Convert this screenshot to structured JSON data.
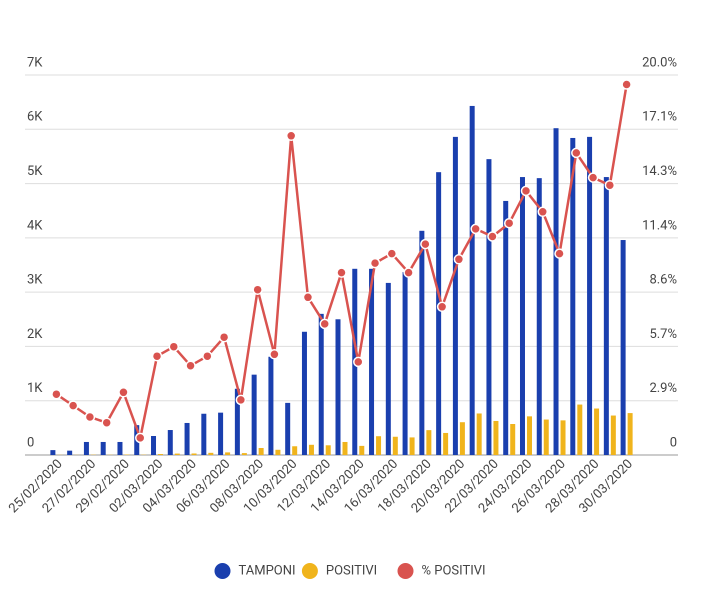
{
  "chart_data": {
    "type": "bar",
    "categories": [
      "25/02/2020",
      null,
      "27/02/2020",
      null,
      "29/02/2020",
      null,
      "02/03/2020",
      null,
      "04/03/2020",
      null,
      "06/03/2020",
      null,
      "08/03/2020",
      null,
      "10/03/2020",
      null,
      "12/03/2020",
      null,
      "14/03/2020",
      null,
      "16/03/2020",
      null,
      "18/03/2020",
      null,
      "20/03/2020",
      null,
      "22/03/2020",
      null,
      "24/03/2020",
      null,
      "26/03/2020",
      null,
      "28/03/2020",
      null,
      "30/03/2020"
    ],
    "series": [
      {
        "name": "TAMPONI",
        "color": "#1a3fae",
        "values": [
          90,
          80,
          240,
          240,
          240,
          550,
          350,
          460,
          590,
          760,
          780,
          1220,
          1480,
          1810,
          960,
          2270,
          2600,
          2500,
          3430,
          3430,
          3170,
          3370,
          4130,
          5210,
          5860,
          6430,
          5450,
          4680,
          5120,
          5100,
          6020,
          5840,
          5860,
          5120,
          3960
        ]
      },
      {
        "name": "POSITIVI",
        "color": "#f0b41c",
        "values": [
          3,
          2,
          5,
          4,
          8,
          5,
          18,
          26,
          28,
          40,
          48,
          35,
          129,
          96,
          161,
          188,
          179,
          240,
          168,
          346,
          336,
          324,
          458,
          406,
          604,
          765,
          627,
          571,
          712,
          653,
          638,
          929,
          856,
          727,
          772
        ]
      },
      {
        "name": "% POSITIVI",
        "color": "#d9534f",
        "type": "line",
        "axis": "y2",
        "values": [
          3.2,
          2.6,
          2.0,
          1.7,
          3.3,
          0.9,
          5.2,
          5.7,
          4.7,
          5.2,
          6.2,
          2.9,
          8.7,
          5.3,
          16.8,
          8.3,
          6.9,
          9.6,
          4.9,
          10.1,
          10.6,
          9.6,
          11.1,
          7.8,
          10.3,
          11.9,
          11.5,
          12.2,
          13.9,
          12.8,
          10.6,
          15.9,
          14.6,
          14.2,
          19.5
        ]
      }
    ],
    "ylim": [
      0,
      7000
    ],
    "yticks": [
      0,
      {
        "value": 1000,
        "label": "1K"
      },
      {
        "value": 2000,
        "label": "2K"
      },
      {
        "value": 3000,
        "label": "3K"
      },
      {
        "value": 4000,
        "label": "4K"
      },
      {
        "value": 5000,
        "label": "5K"
      },
      {
        "value": 6000,
        "label": "6K"
      },
      {
        "value": 7000,
        "label": "7K"
      }
    ],
    "y2lim": [
      0,
      20
    ],
    "y2ticks": [
      0,
      {
        "value": 2.857,
        "label": "2.9%"
      },
      {
        "value": 5.714,
        "label": "5.7%"
      },
      {
        "value": 8.571,
        "label": "8.6%"
      },
      {
        "value": 11.429,
        "label": "11.4%"
      },
      {
        "value": 14.286,
        "label": "14.3%"
      },
      {
        "value": 17.143,
        "label": "17.1%"
      },
      {
        "value": 20,
        "label": "20.0%"
      }
    ],
    "grid": true,
    "legend": "bottom"
  }
}
